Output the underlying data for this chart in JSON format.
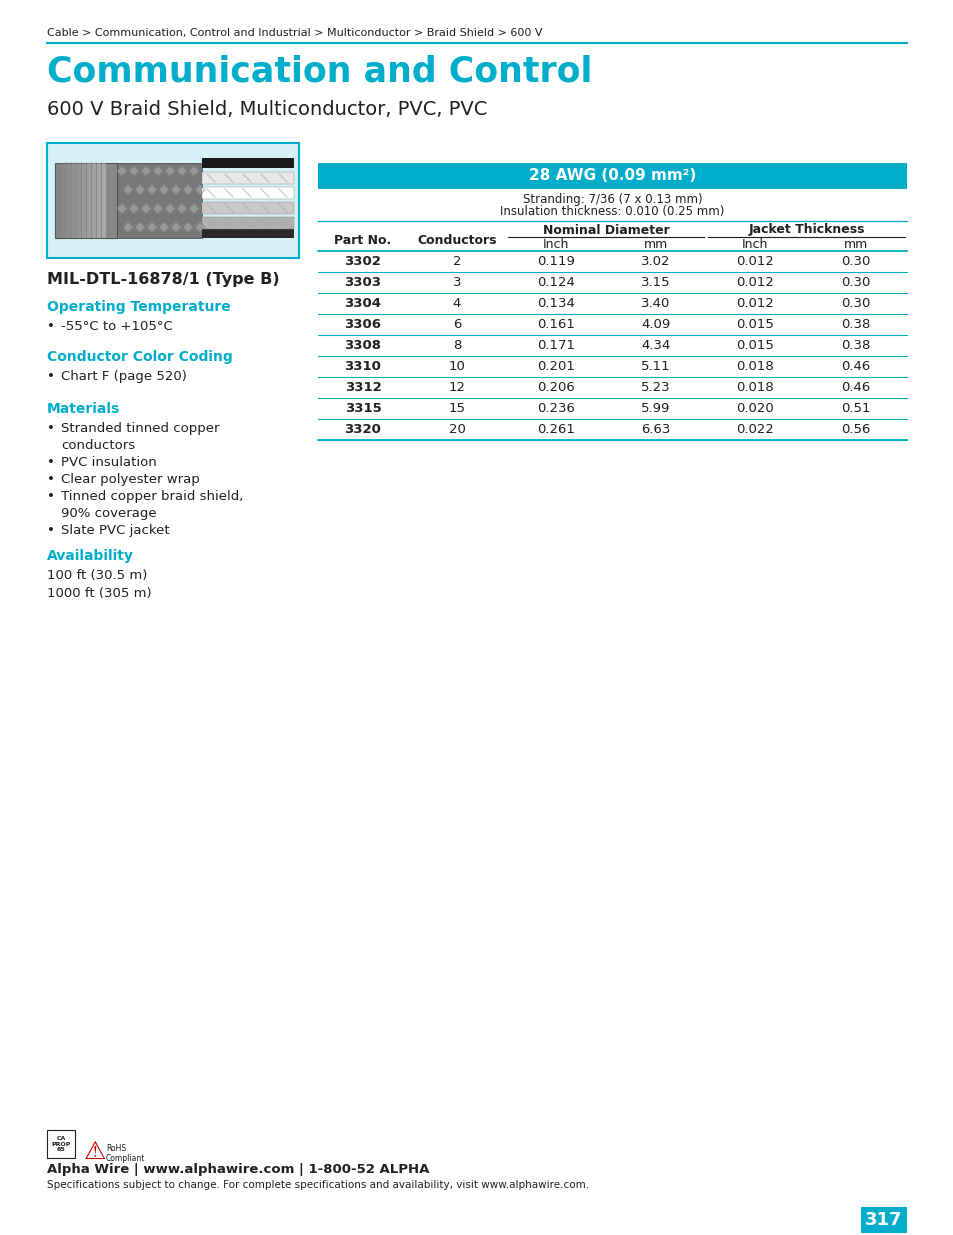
{
  "page_bg": "#ffffff",
  "breadcrumb": "Cable > Communication, Control and Industrial > Multiconductor > Braid Shield > 600 V",
  "main_title": "Communication and Control",
  "subtitle": "600 V Braid Shield, Multiconductor, PVC, PVC",
  "title_color": "#00aecc",
  "header_line_color": "#00aecc",
  "mil_spec": "MIL-DTL-16878/1 (Type B)",
  "section_color": "#00aecc",
  "op_temp_label": "Operating Temperature",
  "op_temp_value": "-55°C to +105°C",
  "color_coding_label": "Conductor Color Coding",
  "color_coding_value": "Chart F (page 520)",
  "materials_label": "Materials",
  "materials_items": [
    "Stranded tinned copper\nconductors",
    "PVC insulation",
    "Clear polyester wrap",
    "Tinned copper braid shield,\n90% coverage",
    "Slate PVC jacket"
  ],
  "availability_label": "Availability",
  "availability_items": [
    "100 ft (30.5 m)",
    "1000 ft (305 m)"
  ],
  "table_header_bg": "#00aecc",
  "table_header_text": "#ffffff",
  "table_awg_title": "28 AWG (0.09 mm²)",
  "table_stranding": "Stranding: 7/36 (7 x 0.13 mm)",
  "table_insulation": "Insulation thickness: 0.010 (0.25 mm)",
  "table_data": [
    [
      "3302",
      "2",
      "0.119",
      "3.02",
      "0.012",
      "0.30"
    ],
    [
      "3303",
      "3",
      "0.124",
      "3.15",
      "0.012",
      "0.30"
    ],
    [
      "3304",
      "4",
      "0.134",
      "3.40",
      "0.012",
      "0.30"
    ],
    [
      "3306",
      "6",
      "0.161",
      "4.09",
      "0.015",
      "0.38"
    ],
    [
      "3308",
      "8",
      "0.171",
      "4.34",
      "0.015",
      "0.38"
    ],
    [
      "3310",
      "10",
      "0.201",
      "5.11",
      "0.018",
      "0.46"
    ],
    [
      "3312",
      "12",
      "0.206",
      "5.23",
      "0.018",
      "0.46"
    ],
    [
      "3315",
      "15",
      "0.236",
      "5.99",
      "0.020",
      "0.51"
    ],
    [
      "3320",
      "20",
      "0.261",
      "6.63",
      "0.022",
      "0.56"
    ]
  ],
  "footer_company": "Alpha Wire | www.alphawire.com | 1-800-52 ALPHA",
  "footer_note": "Specifications subject to change. For complete specifications and availability, visit www.alphawire.com.",
  "page_number": "317",
  "page_number_bg": "#00aecc",
  "image_box_bg": "#d6f0f7",
  "table_line_color": "#00aecc",
  "text_dark": "#231f20"
}
